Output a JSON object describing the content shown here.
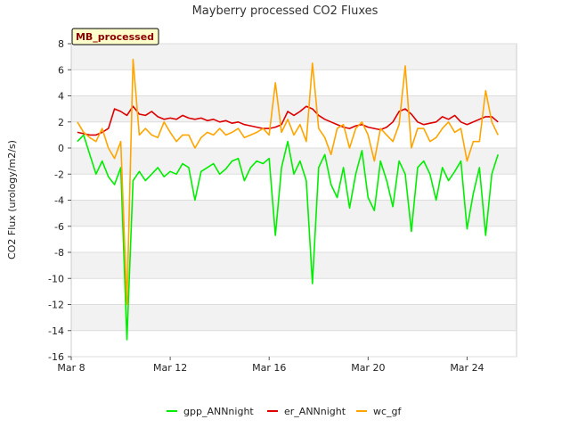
{
  "chart_data": {
    "type": "line",
    "title": "Mayberry processed CO2 Fluxes",
    "tag": "MB_processed",
    "xlabel": "",
    "ylabel": "CO2 Flux (urology/m2/s)",
    "xlim": [
      "2024-03-08",
      "2024-03-26"
    ],
    "ylim": [
      -16,
      8
    ],
    "yticks": [
      8,
      6,
      4,
      2,
      0,
      -2,
      -4,
      -6,
      -8,
      -10,
      -12,
      -14,
      -16
    ],
    "xticks": [
      {
        "label": "Mar 8",
        "date": "2024-03-08"
      },
      {
        "label": "Mar 12",
        "date": "2024-03-12"
      },
      {
        "label": "Mar 16",
        "date": "2024-03-16"
      },
      {
        "label": "Mar 20",
        "date": "2024-03-20"
      },
      {
        "label": "Mar 24",
        "date": "2024-03-24"
      }
    ],
    "x": [
      "2024-03-08 06:00",
      "2024-03-08 12:00",
      "2024-03-08 18:00",
      "2024-03-09 00:00",
      "2024-03-09 06:00",
      "2024-03-09 12:00",
      "2024-03-09 18:00",
      "2024-03-10 00:00",
      "2024-03-10 06:00",
      "2024-03-10 12:00",
      "2024-03-10 18:00",
      "2024-03-11 00:00",
      "2024-03-11 06:00",
      "2024-03-11 12:00",
      "2024-03-11 18:00",
      "2024-03-12 00:00",
      "2024-03-12 06:00",
      "2024-03-12 12:00",
      "2024-03-12 18:00",
      "2024-03-13 00:00",
      "2024-03-13 06:00",
      "2024-03-13 12:00",
      "2024-03-13 18:00",
      "2024-03-14 00:00",
      "2024-03-14 06:00",
      "2024-03-14 12:00",
      "2024-03-14 18:00",
      "2024-03-15 00:00",
      "2024-03-15 06:00",
      "2024-03-15 12:00",
      "2024-03-15 18:00",
      "2024-03-16 00:00",
      "2024-03-16 06:00",
      "2024-03-16 12:00",
      "2024-03-16 18:00",
      "2024-03-17 00:00",
      "2024-03-17 06:00",
      "2024-03-17 12:00",
      "2024-03-17 18:00",
      "2024-03-18 00:00",
      "2024-03-18 06:00",
      "2024-03-18 12:00",
      "2024-03-18 18:00",
      "2024-03-19 00:00",
      "2024-03-19 06:00",
      "2024-03-19 12:00",
      "2024-03-19 18:00",
      "2024-03-20 00:00",
      "2024-03-20 06:00",
      "2024-03-20 12:00",
      "2024-03-20 18:00",
      "2024-03-21 00:00",
      "2024-03-21 06:00",
      "2024-03-21 12:00",
      "2024-03-21 18:00",
      "2024-03-22 00:00",
      "2024-03-22 06:00",
      "2024-03-22 12:00",
      "2024-03-22 18:00",
      "2024-03-23 00:00",
      "2024-03-23 06:00",
      "2024-03-23 12:00",
      "2024-03-23 18:00",
      "2024-03-24 00:00",
      "2024-03-24 06:00",
      "2024-03-24 12:00",
      "2024-03-24 18:00",
      "2024-03-25 00:00",
      "2024-03-25 06:00"
    ],
    "series": [
      {
        "name": "gpp_ANNnight",
        "color": "#00ee00",
        "values": [
          0.5,
          1.0,
          -0.5,
          -2.0,
          -1.0,
          -2.2,
          -2.8,
          -1.5,
          -14.7,
          -2.5,
          -1.8,
          -2.5,
          -2.0,
          -1.5,
          -2.2,
          -1.8,
          -2.0,
          -1.2,
          -1.5,
          -4.0,
          -1.8,
          -1.5,
          -1.2,
          -2.0,
          -1.6,
          -1.0,
          -0.8,
          -2.5,
          -1.5,
          -1.0,
          -1.2,
          -0.8,
          -6.7,
          -1.5,
          0.5,
          -2.0,
          -1.0,
          -2.5,
          -10.4,
          -1.5,
          -0.5,
          -2.8,
          -3.8,
          -1.5,
          -4.6,
          -2.0,
          -0.2,
          -3.8,
          -4.8,
          -1.0,
          -2.5,
          -4.5,
          -1.0,
          -2.0,
          -6.4,
          -1.5,
          -1.0,
          -2.0,
          -4.0,
          -1.5,
          -2.5,
          -1.8,
          -1.0,
          -6.2,
          -3.5,
          -1.5,
          -6.7,
          -2.0,
          -0.5
        ]
      },
      {
        "name": "er_ANNnight",
        "color": "#dd0000",
        "values": [
          1.2,
          1.1,
          1.0,
          1.0,
          1.2,
          1.5,
          3.0,
          2.8,
          2.5,
          3.2,
          2.6,
          2.5,
          2.8,
          2.4,
          2.2,
          2.3,
          2.2,
          2.5,
          2.3,
          2.2,
          2.3,
          2.1,
          2.2,
          2.0,
          2.1,
          1.9,
          2.0,
          1.8,
          1.7,
          1.6,
          1.5,
          1.5,
          1.6,
          1.8,
          2.8,
          2.5,
          2.8,
          3.2,
          3.0,
          2.5,
          2.2,
          2.0,
          1.8,
          1.6,
          1.5,
          1.7,
          1.8,
          1.6,
          1.5,
          1.4,
          1.6,
          2.0,
          2.8,
          3.0,
          2.6,
          2.0,
          1.8,
          1.9,
          2.0,
          2.4,
          2.2,
          2.5,
          2.0,
          1.8,
          2.0,
          2.2,
          2.4,
          2.4,
          2.0
        ]
      },
      {
        "name": "wc_gf",
        "color": "#ffa500",
        "values": [
          2.0,
          1.2,
          0.8,
          0.5,
          1.5,
          0.0,
          -0.8,
          0.5,
          -12.0,
          6.8,
          1.0,
          1.5,
          1.0,
          0.8,
          2.0,
          1.2,
          0.5,
          1.0,
          1.0,
          0.0,
          0.8,
          1.2,
          1.0,
          1.5,
          1.0,
          1.2,
          1.5,
          0.8,
          1.0,
          1.2,
          1.5,
          1.0,
          5.0,
          1.2,
          2.2,
          1.0,
          1.8,
          0.5,
          6.5,
          1.5,
          0.8,
          -0.5,
          1.5,
          1.8,
          0.0,
          1.5,
          2.0,
          1.0,
          -1.0,
          1.5,
          1.0,
          0.5,
          1.8,
          6.3,
          0.0,
          1.5,
          1.5,
          0.5,
          0.8,
          1.5,
          2.0,
          1.2,
          1.5,
          -1.0,
          0.5,
          0.5,
          4.4,
          2.0,
          1.0
        ]
      }
    ],
    "grid": true,
    "legend": "bottom"
  }
}
